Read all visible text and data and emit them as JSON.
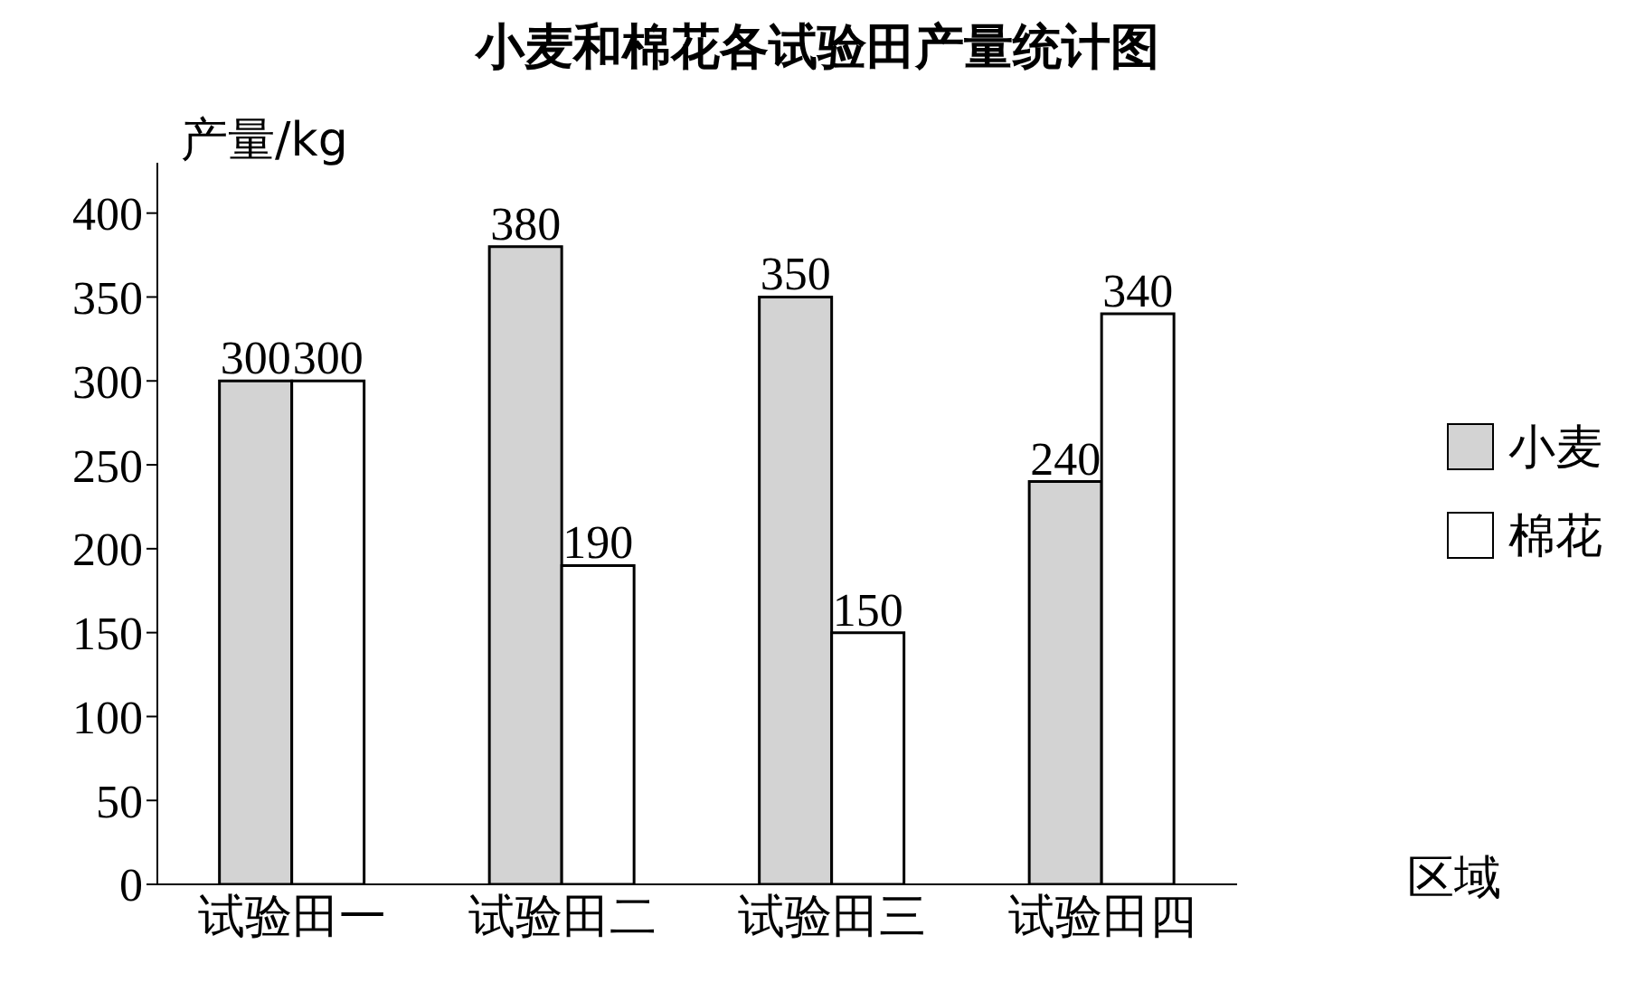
{
  "chart_data": {
    "type": "bar",
    "title": "小麦和棉花各试验田产量统计图",
    "xlabel": "区域",
    "ylabel": "产量/kg",
    "categories": [
      "试验田一",
      "试验田二",
      "试验田三",
      "试验田四"
    ],
    "series": [
      {
        "name": "小麦",
        "color": "#d3d3d3",
        "values": [
          300,
          380,
          350,
          240
        ]
      },
      {
        "name": "棉花",
        "color": "#ffffff",
        "values": [
          300,
          190,
          150,
          340
        ]
      }
    ],
    "ylim": [
      0,
      430
    ],
    "yticks": [
      0,
      50,
      100,
      150,
      200,
      250,
      300,
      350,
      400
    ],
    "grid": false,
    "legend": "right",
    "data_labels": true
  }
}
